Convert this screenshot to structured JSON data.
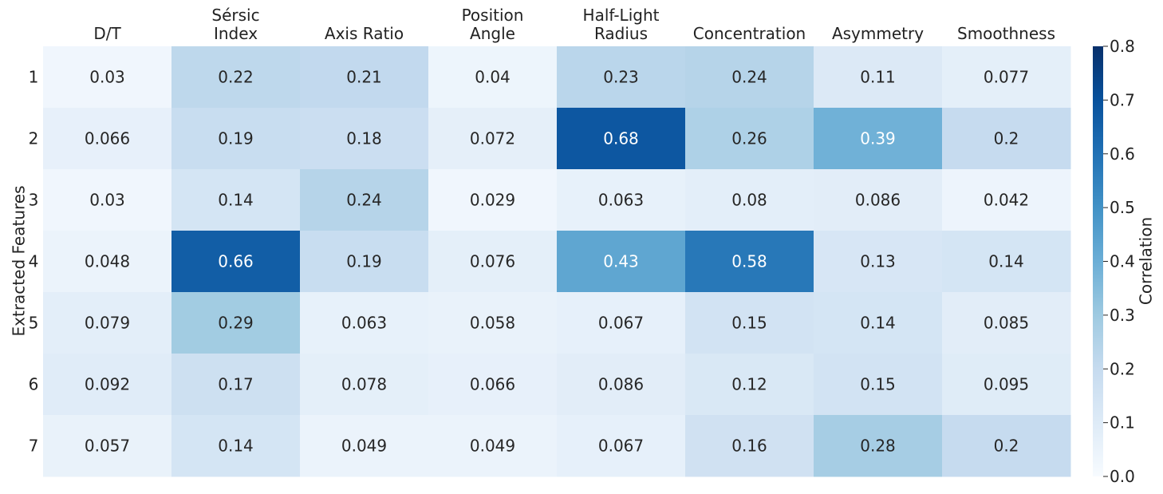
{
  "chart_data": {
    "type": "heatmap",
    "title": "",
    "xlabel": "",
    "ylabel": "Extracted Features",
    "columns": [
      [
        "D/T"
      ],
      [
        "Sérsic",
        "Index"
      ],
      [
        "Axis Ratio"
      ],
      [
        "Position",
        "Angle"
      ],
      [
        "Half-Light",
        "Radius"
      ],
      [
        "Concentration"
      ],
      [
        "Asymmetry"
      ],
      [
        "Smoothness"
      ]
    ],
    "rows": [
      "1",
      "2",
      "3",
      "4",
      "5",
      "6",
      "7"
    ],
    "values": [
      [
        0.03,
        0.22,
        0.21,
        0.04,
        0.23,
        0.24,
        0.11,
        0.077
      ],
      [
        0.066,
        0.19,
        0.18,
        0.072,
        0.68,
        0.26,
        0.39,
        0.2
      ],
      [
        0.03,
        0.14,
        0.24,
        0.029,
        0.063,
        0.08,
        0.086,
        0.042
      ],
      [
        0.048,
        0.66,
        0.19,
        0.076,
        0.43,
        0.58,
        0.13,
        0.14
      ],
      [
        0.079,
        0.29,
        0.063,
        0.058,
        0.067,
        0.15,
        0.14,
        0.085
      ],
      [
        0.092,
        0.17,
        0.078,
        0.066,
        0.086,
        0.12,
        0.15,
        0.095
      ],
      [
        0.057,
        0.14,
        0.049,
        0.049,
        0.067,
        0.16,
        0.28,
        0.2
      ]
    ],
    "colorbar": {
      "label": "Correlation",
      "colormap": "Blues",
      "range": [
        0.0,
        0.8
      ],
      "ticks": [
        "0.0",
        "0.1",
        "0.2",
        "0.3",
        "0.4",
        "0.5",
        "0.6",
        "0.7",
        "0.8"
      ]
    }
  }
}
